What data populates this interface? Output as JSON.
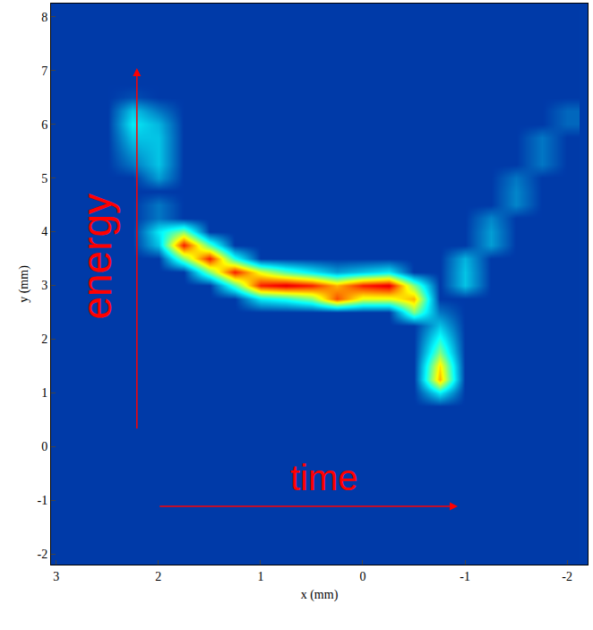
{
  "chart_data": {
    "type": "heatmap",
    "x_label": "x (mm)",
    "y_label": "y (mm)",
    "xlim": [
      3.05,
      -2.2
    ],
    "ylim": [
      -2.2,
      8.25
    ],
    "xticks": [
      3,
      2,
      1,
      0,
      -1,
      -2
    ],
    "yticks": [
      -2,
      -1,
      0,
      1,
      2,
      3,
      4,
      5,
      6,
      7,
      8
    ],
    "zlim": [
      0,
      1
    ],
    "annotations": [
      {
        "text": "energy"
      },
      {
        "text": "time"
      }
    ],
    "x": [
      3,
      2.75,
      2.5,
      2.25,
      2,
      1.75,
      1.5,
      1.25,
      1,
      0.75,
      0.5,
      0.25,
      0,
      -0.25,
      -0.5,
      -0.75,
      -1,
      -1.25,
      -1.5,
      -1.75,
      -2
    ],
    "y": [
      -2,
      -1.75,
      -1.5,
      -1.25,
      -1,
      -0.75,
      -0.5,
      -0.25,
      0,
      0.25,
      0.5,
      0.75,
      1,
      1.25,
      1.5,
      1.75,
      2,
      2.25,
      2.5,
      2.75,
      3,
      3.25,
      3.5,
      3.75,
      4,
      4.25,
      4.5,
      4.75,
      5,
      5.25,
      5.5,
      5.75,
      6,
      6.25,
      6.5,
      6.75,
      7,
      7.25,
      7.5,
      7.75,
      8
    ],
    "z": [
      [
        0.12,
        0.12,
        0.12,
        0.12,
        0.12,
        0.12,
        0.12,
        0.12,
        0.12,
        0.12,
        0.12,
        0.12,
        0.12,
        0.12,
        0.12,
        0.12,
        0.12,
        0.12,
        0.12,
        0.12,
        0.12
      ],
      [
        0.12,
        0.12,
        0.12,
        0.12,
        0.12,
        0.12,
        0.12,
        0.12,
        0.12,
        0.12,
        0.12,
        0.12,
        0.12,
        0.12,
        0.12,
        0.12,
        0.12,
        0.12,
        0.12,
        0.12,
        0.12
      ],
      [
        0.12,
        0.12,
        0.12,
        0.12,
        0.12,
        0.12,
        0.12,
        0.12,
        0.12,
        0.12,
        0.12,
        0.12,
        0.12,
        0.12,
        0.12,
        0.12,
        0.12,
        0.12,
        0.12,
        0.12,
        0.12
      ],
      [
        0.12,
        0.12,
        0.12,
        0.12,
        0.12,
        0.12,
        0.12,
        0.12,
        0.12,
        0.12,
        0.12,
        0.12,
        0.12,
        0.12,
        0.12,
        0.12,
        0.12,
        0.12,
        0.12,
        0.12,
        0.12
      ],
      [
        0.12,
        0.12,
        0.12,
        0.12,
        0.12,
        0.12,
        0.12,
        0.12,
        0.12,
        0.12,
        0.12,
        0.12,
        0.12,
        0.12,
        0.12,
        0.12,
        0.12,
        0.12,
        0.12,
        0.12,
        0.12
      ],
      [
        0.12,
        0.12,
        0.12,
        0.12,
        0.12,
        0.12,
        0.12,
        0.12,
        0.12,
        0.12,
        0.12,
        0.12,
        0.12,
        0.12,
        0.12,
        0.12,
        0.12,
        0.12,
        0.12,
        0.12,
        0.12
      ],
      [
        0.12,
        0.12,
        0.12,
        0.12,
        0.12,
        0.12,
        0.12,
        0.12,
        0.12,
        0.12,
        0.12,
        0.12,
        0.12,
        0.12,
        0.12,
        0.12,
        0.12,
        0.12,
        0.12,
        0.12,
        0.12
      ],
      [
        0.12,
        0.12,
        0.12,
        0.12,
        0.12,
        0.12,
        0.12,
        0.12,
        0.12,
        0.12,
        0.12,
        0.12,
        0.12,
        0.12,
        0.12,
        0.12,
        0.12,
        0.12,
        0.12,
        0.12,
        0.12
      ],
      [
        0.12,
        0.12,
        0.12,
        0.12,
        0.12,
        0.12,
        0.12,
        0.12,
        0.12,
        0.12,
        0.12,
        0.12,
        0.12,
        0.12,
        0.12,
        0.12,
        0.12,
        0.12,
        0.12,
        0.12,
        0.12
      ],
      [
        0.12,
        0.12,
        0.12,
        0.12,
        0.12,
        0.12,
        0.12,
        0.12,
        0.12,
        0.12,
        0.12,
        0.12,
        0.12,
        0.12,
        0.12,
        0.12,
        0.12,
        0.12,
        0.12,
        0.12,
        0.12
      ],
      [
        0.12,
        0.12,
        0.12,
        0.12,
        0.12,
        0.12,
        0.12,
        0.12,
        0.12,
        0.12,
        0.12,
        0.12,
        0.12,
        0.12,
        0.12,
        0.12,
        0.12,
        0.12,
        0.12,
        0.12,
        0.12
      ],
      [
        0.12,
        0.12,
        0.12,
        0.12,
        0.12,
        0.12,
        0.12,
        0.12,
        0.12,
        0.12,
        0.12,
        0.12,
        0.12,
        0.12,
        0.12,
        0.12,
        0.12,
        0.12,
        0.12,
        0.12,
        0.12
      ],
      [
        0.12,
        0.12,
        0.12,
        0.12,
        0.12,
        0.12,
        0.12,
        0.12,
        0.12,
        0.12,
        0.12,
        0.12,
        0.12,
        0.12,
        0.12,
        0.35,
        0.12,
        0.12,
        0.12,
        0.12,
        0.12
      ],
      [
        0.12,
        0.12,
        0.12,
        0.12,
        0.12,
        0.12,
        0.12,
        0.12,
        0.12,
        0.12,
        0.12,
        0.12,
        0.12,
        0.12,
        0.12,
        0.7,
        0.12,
        0.12,
        0.12,
        0.12,
        0.12
      ],
      [
        0.12,
        0.12,
        0.12,
        0.12,
        0.12,
        0.12,
        0.12,
        0.12,
        0.12,
        0.12,
        0.12,
        0.12,
        0.12,
        0.12,
        0.12,
        0.65,
        0.12,
        0.12,
        0.12,
        0.12,
        0.12
      ],
      [
        0.12,
        0.12,
        0.12,
        0.12,
        0.12,
        0.12,
        0.12,
        0.12,
        0.12,
        0.12,
        0.12,
        0.12,
        0.12,
        0.12,
        0.12,
        0.5,
        0.12,
        0.12,
        0.12,
        0.12,
        0.12
      ],
      [
        0.12,
        0.12,
        0.12,
        0.12,
        0.12,
        0.12,
        0.12,
        0.12,
        0.12,
        0.12,
        0.12,
        0.12,
        0.12,
        0.12,
        0.12,
        0.4,
        0.12,
        0.12,
        0.12,
        0.12,
        0.12
      ],
      [
        0.12,
        0.12,
        0.12,
        0.12,
        0.12,
        0.12,
        0.12,
        0.12,
        0.12,
        0.12,
        0.12,
        0.12,
        0.12,
        0.12,
        0.12,
        0.3,
        0.12,
        0.12,
        0.12,
        0.12,
        0.12
      ],
      [
        0.12,
        0.12,
        0.12,
        0.12,
        0.12,
        0.12,
        0.12,
        0.12,
        0.12,
        0.12,
        0.12,
        0.12,
        0.12,
        0.12,
        0.5,
        0.2,
        0.12,
        0.12,
        0.12,
        0.12,
        0.12
      ],
      [
        0.12,
        0.12,
        0.12,
        0.12,
        0.12,
        0.12,
        0.12,
        0.12,
        0.35,
        0.4,
        0.5,
        0.8,
        0.6,
        0.6,
        0.7,
        0.12,
        0.12,
        0.12,
        0.12,
        0.12,
        0.12
      ],
      [
        0.12,
        0.12,
        0.12,
        0.12,
        0.12,
        0.12,
        0.12,
        0.45,
        0.85,
        0.9,
        0.85,
        0.7,
        0.85,
        0.9,
        0.5,
        0.12,
        0.3,
        0.12,
        0.12,
        0.12,
        0.12
      ],
      [
        0.12,
        0.12,
        0.12,
        0.12,
        0.12,
        0.12,
        0.5,
        0.85,
        0.6,
        0.45,
        0.35,
        0.25,
        0.3,
        0.35,
        0.12,
        0.12,
        0.3,
        0.12,
        0.12,
        0.12,
        0.12
      ],
      [
        0.12,
        0.12,
        0.12,
        0.12,
        0.12,
        0.5,
        0.85,
        0.4,
        0.12,
        0.12,
        0.12,
        0.12,
        0.12,
        0.12,
        0.12,
        0.12,
        0.28,
        0.12,
        0.12,
        0.12,
        0.12
      ],
      [
        0.12,
        0.12,
        0.12,
        0.12,
        0.3,
        0.85,
        0.45,
        0.12,
        0.12,
        0.12,
        0.12,
        0.12,
        0.12,
        0.12,
        0.12,
        0.12,
        0.12,
        0.25,
        0.12,
        0.12,
        0.12
      ],
      [
        0.12,
        0.12,
        0.12,
        0.12,
        0.35,
        0.5,
        0.12,
        0.12,
        0.12,
        0.12,
        0.12,
        0.12,
        0.12,
        0.12,
        0.12,
        0.12,
        0.12,
        0.25,
        0.12,
        0.12,
        0.12
      ],
      [
        0.12,
        0.12,
        0.12,
        0.12,
        0.2,
        0.12,
        0.12,
        0.12,
        0.12,
        0.12,
        0.12,
        0.12,
        0.12,
        0.12,
        0.12,
        0.12,
        0.12,
        0.22,
        0.12,
        0.12,
        0.12
      ],
      [
        0.12,
        0.12,
        0.12,
        0.12,
        0.2,
        0.12,
        0.12,
        0.12,
        0.12,
        0.12,
        0.12,
        0.12,
        0.12,
        0.12,
        0.12,
        0.12,
        0.12,
        0.12,
        0.22,
        0.12,
        0.12
      ],
      [
        0.12,
        0.12,
        0.12,
        0.12,
        0.12,
        0.12,
        0.12,
        0.12,
        0.12,
        0.12,
        0.12,
        0.12,
        0.12,
        0.12,
        0.12,
        0.12,
        0.12,
        0.12,
        0.22,
        0.12,
        0.12
      ],
      [
        0.12,
        0.12,
        0.12,
        0.12,
        0.25,
        0.12,
        0.12,
        0.12,
        0.12,
        0.12,
        0.12,
        0.12,
        0.12,
        0.12,
        0.12,
        0.12,
        0.12,
        0.12,
        0.2,
        0.12,
        0.12
      ],
      [
        0.12,
        0.12,
        0.12,
        0.2,
        0.3,
        0.12,
        0.12,
        0.12,
        0.12,
        0.12,
        0.12,
        0.12,
        0.12,
        0.12,
        0.12,
        0.12,
        0.12,
        0.12,
        0.12,
        0.2,
        0.12
      ],
      [
        0.12,
        0.12,
        0.12,
        0.25,
        0.3,
        0.12,
        0.12,
        0.12,
        0.12,
        0.12,
        0.12,
        0.12,
        0.12,
        0.12,
        0.12,
        0.12,
        0.12,
        0.12,
        0.12,
        0.2,
        0.12
      ],
      [
        0.12,
        0.12,
        0.12,
        0.3,
        0.3,
        0.12,
        0.12,
        0.12,
        0.12,
        0.12,
        0.12,
        0.12,
        0.12,
        0.12,
        0.12,
        0.12,
        0.12,
        0.12,
        0.12,
        0.2,
        0.12
      ],
      [
        0.12,
        0.12,
        0.12,
        0.35,
        0.28,
        0.12,
        0.12,
        0.12,
        0.12,
        0.12,
        0.12,
        0.12,
        0.12,
        0.12,
        0.12,
        0.12,
        0.12,
        0.12,
        0.12,
        0.12,
        0.18
      ],
      [
        0.12,
        0.12,
        0.12,
        0.3,
        0.2,
        0.12,
        0.12,
        0.12,
        0.12,
        0.12,
        0.12,
        0.12,
        0.12,
        0.12,
        0.12,
        0.12,
        0.12,
        0.12,
        0.12,
        0.12,
        0.18
      ],
      [
        0.12,
        0.12,
        0.12,
        0.15,
        0.12,
        0.12,
        0.12,
        0.12,
        0.12,
        0.12,
        0.12,
        0.12,
        0.12,
        0.12,
        0.12,
        0.12,
        0.12,
        0.12,
        0.12,
        0.12,
        0.12
      ],
      [
        0.12,
        0.12,
        0.12,
        0.12,
        0.12,
        0.12,
        0.12,
        0.12,
        0.12,
        0.12,
        0.12,
        0.12,
        0.12,
        0.12,
        0.12,
        0.12,
        0.12,
        0.12,
        0.12,
        0.12,
        0.12
      ],
      [
        0.12,
        0.12,
        0.12,
        0.12,
        0.12,
        0.12,
        0.12,
        0.12,
        0.12,
        0.12,
        0.12,
        0.12,
        0.12,
        0.12,
        0.12,
        0.12,
        0.12,
        0.12,
        0.12,
        0.12,
        0.12
      ],
      [
        0.12,
        0.12,
        0.12,
        0.12,
        0.12,
        0.12,
        0.12,
        0.12,
        0.12,
        0.12,
        0.12,
        0.12,
        0.12,
        0.12,
        0.12,
        0.12,
        0.12,
        0.12,
        0.12,
        0.12,
        0.12
      ],
      [
        0.12,
        0.12,
        0.12,
        0.12,
        0.12,
        0.12,
        0.12,
        0.12,
        0.12,
        0.12,
        0.12,
        0.12,
        0.12,
        0.12,
        0.12,
        0.12,
        0.12,
        0.12,
        0.12,
        0.12,
        0.12
      ],
      [
        0.12,
        0.12,
        0.12,
        0.12,
        0.12,
        0.12,
        0.12,
        0.12,
        0.12,
        0.12,
        0.12,
        0.12,
        0.12,
        0.12,
        0.12,
        0.12,
        0.12,
        0.12,
        0.12,
        0.12,
        0.12
      ],
      [
        0.12,
        0.12,
        0.12,
        0.12,
        0.12,
        0.12,
        0.12,
        0.12,
        0.12,
        0.12,
        0.12,
        0.12,
        0.12,
        0.12,
        0.12,
        0.12,
        0.12,
        0.12,
        0.12,
        0.12,
        0.12
      ]
    ]
  }
}
